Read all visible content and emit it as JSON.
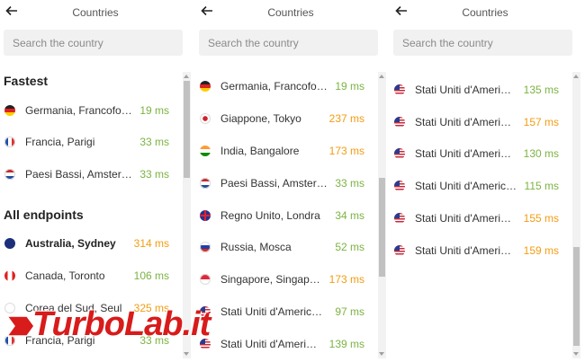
{
  "panels": [
    {
      "title": "Countries",
      "search_placeholder": "Search the country",
      "sections": [
        {
          "label": "Fastest",
          "rows": [
            {
              "name": "Germania, Francoforte",
              "ms": "19 ms",
              "flag": "de",
              "speed": "good"
            },
            {
              "name": "Francia, Parigi",
              "ms": "33 ms",
              "flag": "fr",
              "speed": "good"
            },
            {
              "name": "Paesi Bassi, Amsterdam",
              "ms": "33 ms",
              "flag": "nl",
              "speed": "good"
            }
          ]
        },
        {
          "label": "All endpoints",
          "rows": [
            {
              "name": "Australia, Sydney",
              "ms": "314 ms",
              "flag": "au",
              "speed": "slow",
              "selected": true
            },
            {
              "name": "Canada, Toronto",
              "ms": "106 ms",
              "flag": "ca",
              "speed": "good"
            },
            {
              "name": "Corea del Sud, Seul",
              "ms": "325 ms",
              "flag": "kr",
              "speed": "slow"
            },
            {
              "name": "Francia, Parigi",
              "ms": "33 ms",
              "flag": "fr",
              "speed": "good"
            }
          ]
        }
      ],
      "scroll_position": 0.0
    },
    {
      "title": "Countries",
      "search_placeholder": "Search the country",
      "rows": [
        {
          "name": "Germania, Francoforte",
          "ms": "19 ms",
          "flag": "de",
          "speed": "good"
        },
        {
          "name": "Giappone, Tokyo",
          "ms": "237 ms",
          "flag": "jp",
          "speed": "slow"
        },
        {
          "name": "India, Bangalore",
          "ms": "173 ms",
          "flag": "in",
          "speed": "slow"
        },
        {
          "name": "Paesi Bassi, Amsterdam",
          "ms": "33 ms",
          "flag": "nl",
          "speed": "good"
        },
        {
          "name": "Regno Unito, Londra",
          "ms": "34 ms",
          "flag": "gb",
          "speed": "good"
        },
        {
          "name": "Russia, Mosca",
          "ms": "52 ms",
          "flag": "ru",
          "speed": "good"
        },
        {
          "name": "Singapore, Singapore",
          "ms": "173 ms",
          "flag": "sg",
          "speed": "slow"
        },
        {
          "name": "Stati Uniti d'America, Ashburn",
          "ms": "97 ms",
          "flag": "us",
          "speed": "good"
        },
        {
          "name": "Stati Uniti d'America, Atlanta",
          "ms": "139 ms",
          "flag": "us",
          "speed": "good"
        }
      ],
      "scroll_position": 0.5
    },
    {
      "title": "Countries",
      "search_placeholder": "Search the country",
      "rows": [
        {
          "name": "Stati Uniti d'America, Chicago",
          "ms": "135 ms",
          "flag": "us",
          "speed": "good"
        },
        {
          "name": "Stati Uniti d'America, Los Angeles",
          "ms": "157 ms",
          "flag": "us",
          "speed": "slow"
        },
        {
          "name": "Stati Uniti d'America, Miami",
          "ms": "130 ms",
          "flag": "us",
          "speed": "good"
        },
        {
          "name": "Stati Uniti d'America, New York",
          "ms": "115 ms",
          "flag": "us",
          "speed": "good"
        },
        {
          "name": "Stati Uniti d'America, San Jose",
          "ms": "155 ms",
          "flag": "us",
          "speed": "slow"
        },
        {
          "name": "Stati Uniti d'America, Seattle",
          "ms": "159 ms",
          "flag": "us",
          "speed": "slow"
        }
      ],
      "scroll_position": 1.0
    }
  ],
  "colors": {
    "fast": "#7cb342",
    "slow": "#f39c12"
  },
  "watermark": {
    "text": "TurboLab.it"
  }
}
